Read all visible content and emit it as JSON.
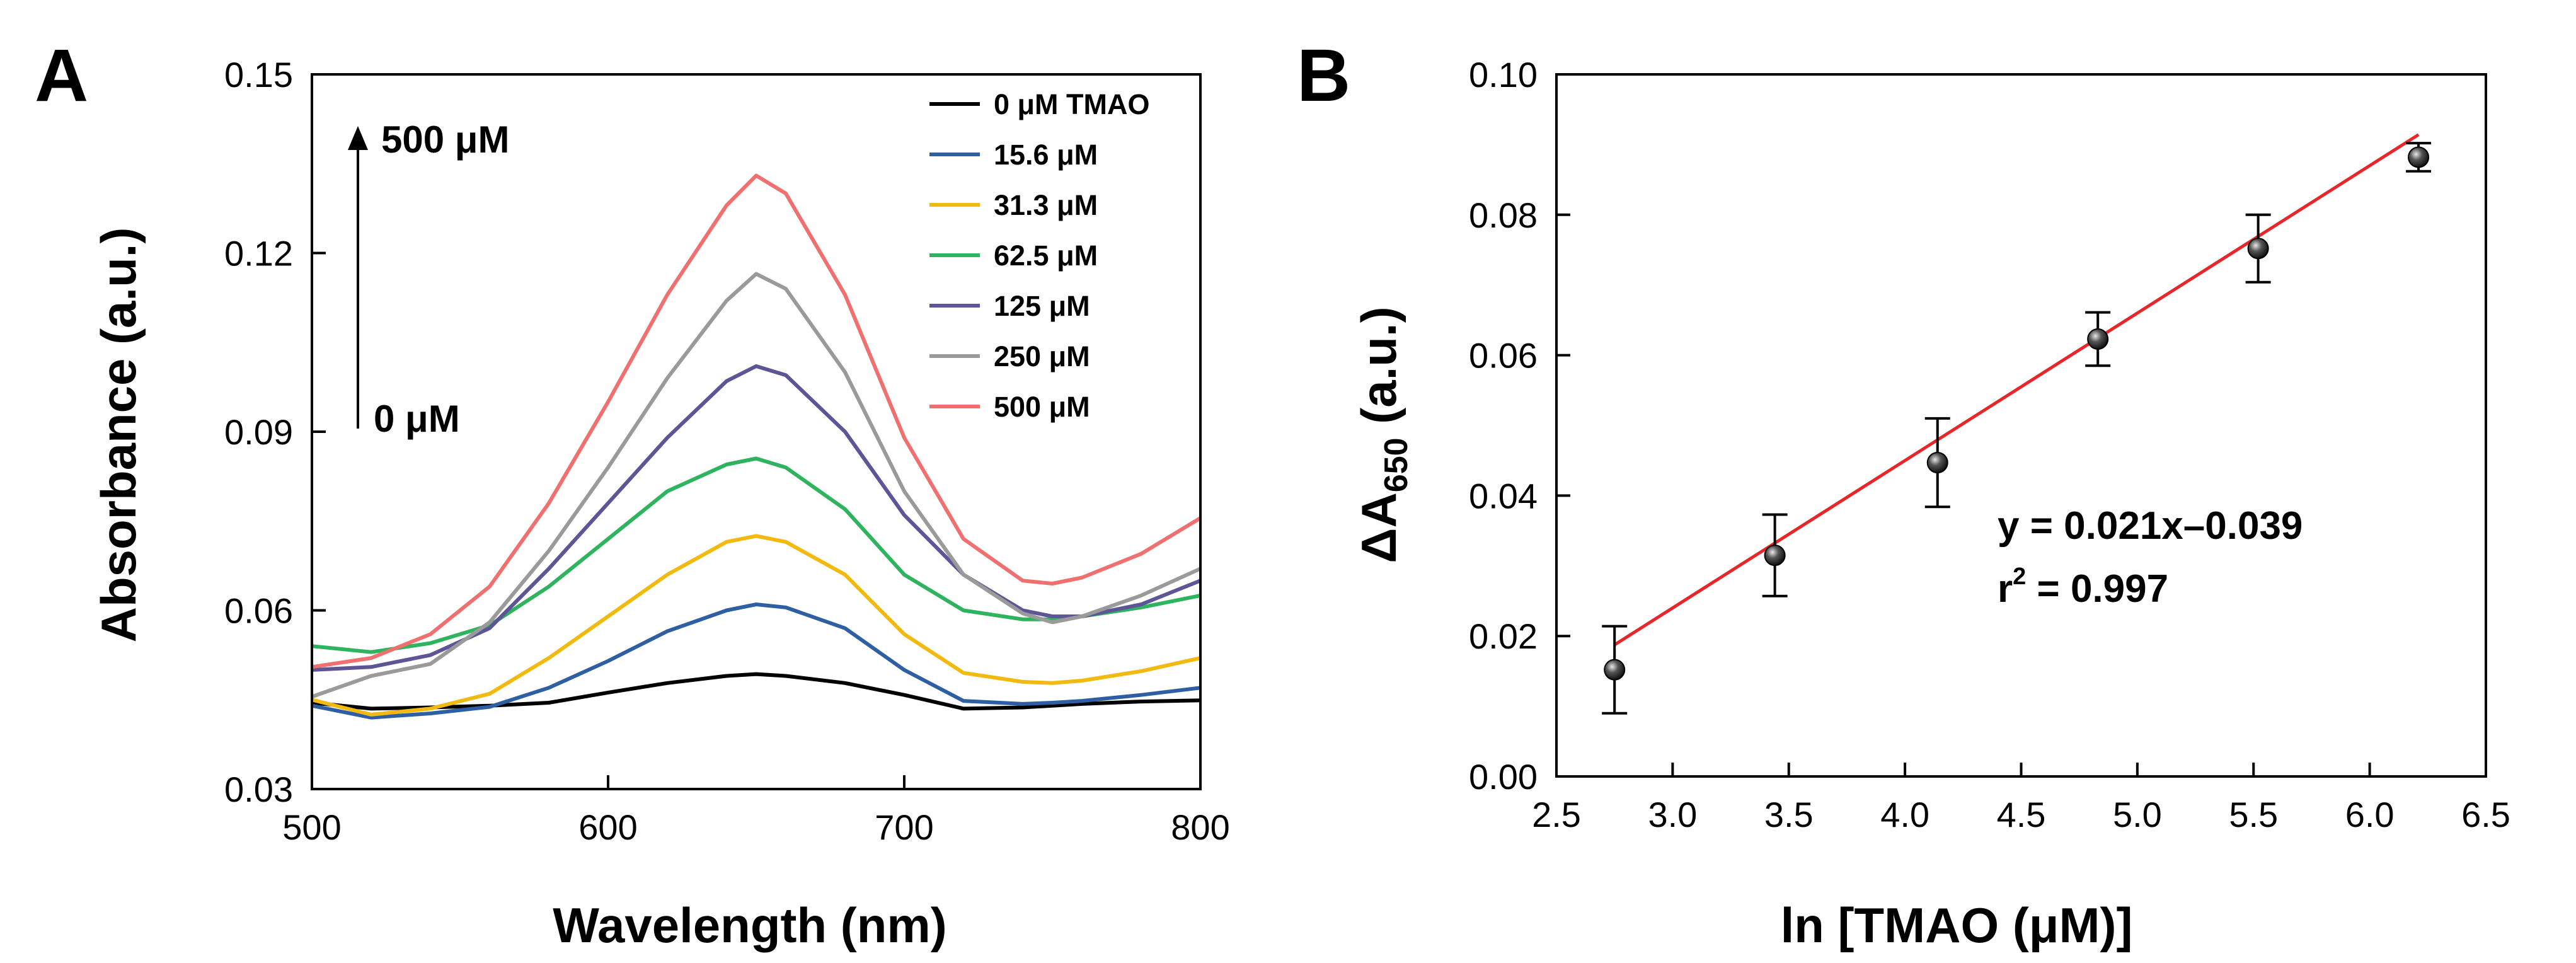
{
  "chart_data": [
    {
      "panel": "A",
      "type": "line",
      "xlabel": "Wavelength (nm)",
      "ylabel": "Absorbance (a.u.)",
      "xlim": [
        500,
        800
      ],
      "ylim": [
        0.03,
        0.15
      ],
      "xticks": [
        "500",
        "600",
        "700",
        "800"
      ],
      "yticks": [
        "0.03",
        "0.06",
        "0.09",
        "0.12",
        "0.15"
      ],
      "arrow_top_label": "500 μM",
      "arrow_bottom_label": "0 μM",
      "x": [
        500,
        520,
        540,
        560,
        580,
        600,
        620,
        640,
        650,
        660,
        680,
        700,
        720,
        740,
        750,
        760,
        780,
        800
      ],
      "series": [
        {
          "name": "0 μM TMAO",
          "color": "#000000",
          "values": [
            0.0445,
            0.0435,
            0.0437,
            0.044,
            0.0445,
            0.0462,
            0.0478,
            0.049,
            0.0493,
            0.049,
            0.0478,
            0.0458,
            0.0435,
            0.0437,
            0.044,
            0.0443,
            0.0447,
            0.0449
          ]
        },
        {
          "name": "15.6 μM",
          "color": "#2E5FA3",
          "values": [
            0.044,
            0.042,
            0.0427,
            0.0438,
            0.047,
            0.0515,
            0.0565,
            0.06,
            0.061,
            0.0605,
            0.057,
            0.05,
            0.0448,
            0.0443,
            0.0445,
            0.0448,
            0.0458,
            0.047
          ]
        },
        {
          "name": "31.3 μM",
          "color": "#F2B90F",
          "values": [
            0.045,
            0.0425,
            0.0435,
            0.046,
            0.052,
            0.059,
            0.066,
            0.0715,
            0.0725,
            0.0715,
            0.066,
            0.056,
            0.0495,
            0.048,
            0.0478,
            0.0482,
            0.0498,
            0.052
          ]
        },
        {
          "name": "62.5 μM",
          "color": "#2EB35F",
          "values": [
            0.054,
            0.053,
            0.0545,
            0.0575,
            0.064,
            0.072,
            0.08,
            0.0845,
            0.0855,
            0.084,
            0.077,
            0.066,
            0.06,
            0.0585,
            0.0585,
            0.059,
            0.0605,
            0.0625
          ]
        },
        {
          "name": "125 μM",
          "color": "#5C5596",
          "values": [
            0.05,
            0.0505,
            0.0525,
            0.057,
            0.067,
            0.078,
            0.089,
            0.0985,
            0.101,
            0.0995,
            0.09,
            0.076,
            0.066,
            0.06,
            0.059,
            0.059,
            0.061,
            0.065
          ]
        },
        {
          "name": "250 μM",
          "color": "#9A9A9A",
          "values": [
            0.0455,
            0.049,
            0.051,
            0.058,
            0.07,
            0.084,
            0.099,
            0.112,
            0.1165,
            0.114,
            0.1,
            0.08,
            0.066,
            0.0595,
            0.058,
            0.059,
            0.0625,
            0.067
          ]
        },
        {
          "name": "500 μM",
          "color": "#F07070",
          "values": [
            0.0505,
            0.052,
            0.056,
            0.064,
            0.078,
            0.095,
            0.113,
            0.128,
            0.133,
            0.13,
            0.113,
            0.089,
            0.072,
            0.065,
            0.0645,
            0.0655,
            0.0695,
            0.0755
          ]
        }
      ]
    },
    {
      "panel": "B",
      "type": "scatter",
      "xlabel": "ln [TMAO (μM)]",
      "ylabel_main": "ΔA",
      "ylabel_sub": "650",
      "ylabel_tail": " (a.u.)",
      "xlim": [
        2.5,
        6.5
      ],
      "ylim": [
        0.0,
        0.1
      ],
      "xticks": [
        "2.5",
        "3.0",
        "3.5",
        "4.0",
        "4.5",
        "5.0",
        "5.5",
        "6.0",
        "6.5"
      ],
      "yticks": [
        "0.00",
        "0.02",
        "0.04",
        "0.06",
        "0.08",
        "0.10"
      ],
      "points": [
        {
          "x": 2.75,
          "y": 0.0152,
          "err": 0.0062
        },
        {
          "x": 3.44,
          "y": 0.0315,
          "err": 0.0058
        },
        {
          "x": 4.14,
          "y": 0.0447,
          "err": 0.0063
        },
        {
          "x": 4.83,
          "y": 0.0623,
          "err": 0.0038
        },
        {
          "x": 5.52,
          "y": 0.0752,
          "err": 0.0048
        },
        {
          "x": 6.21,
          "y": 0.0882,
          "err": 0.002
        }
      ],
      "fit": {
        "slope": 0.021,
        "intercept": -0.039,
        "x_range": [
          2.75,
          6.21
        ],
        "color": "#E8262A"
      },
      "equation": "y = 0.021x–0.039",
      "r2_prefix": "r",
      "r2_sup": "2",
      "r2_suffix": " = 0.997"
    }
  ]
}
